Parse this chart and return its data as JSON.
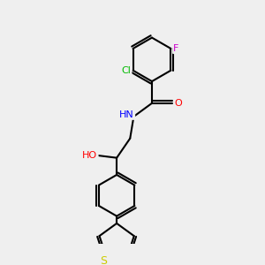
{
  "background_color": "#efefef",
  "bond_color": "#000000",
  "atom_colors": {
    "Cl": "#00bb00",
    "F": "#cc00cc",
    "N": "#0000ff",
    "O": "#ff0000",
    "S": "#cccc00",
    "HO": "#ff0000",
    "H": "#000000"
  },
  "figsize": [
    3.0,
    3.0
  ],
  "dpi": 100
}
